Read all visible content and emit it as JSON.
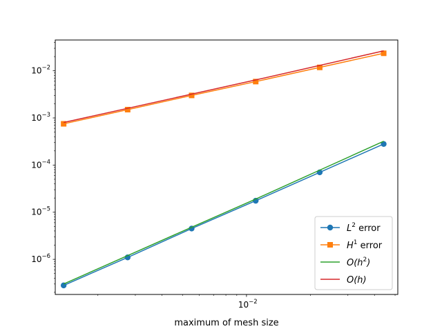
{
  "chart_data": {
    "type": "line",
    "title": "",
    "xlabel": "maximum of mesh size",
    "ylabel": "",
    "xscale": "log",
    "yscale": "log",
    "xlim": [
      0.00126,
      0.0515
    ],
    "ylim": [
      1.8e-07,
      0.045
    ],
    "grid": false,
    "legend_position": "lower-right",
    "x_ticks": [
      {
        "value": 0.01,
        "base": "10",
        "exp": "−2"
      }
    ],
    "y_ticks": [
      {
        "value": 1e-06,
        "base": "10",
        "exp": "−6"
      },
      {
        "value": 1e-05,
        "base": "10",
        "exp": "−5"
      },
      {
        "value": 0.0001,
        "base": "10",
        "exp": "−4"
      },
      {
        "value": 0.001,
        "base": "10",
        "exp": "−3"
      },
      {
        "value": 0.01,
        "base": "10",
        "exp": "−2"
      }
    ],
    "x": [
      0.00138,
      0.00276,
      0.00552,
      0.01105,
      0.0221,
      0.0442
    ],
    "series": [
      {
        "name": "L² error",
        "name_parts": {
          "base": "L",
          "sup": "2",
          "rest": " error"
        },
        "color": "#1f77b4",
        "marker": "circle",
        "values": [
          2.8e-07,
          1.1e-06,
          4.5e-06,
          1.75e-05,
          7e-05,
          0.00028
        ]
      },
      {
        "name": "H¹ error",
        "name_parts": {
          "base": "H",
          "sup": "1",
          "rest": " error"
        },
        "color": "#ff7f0e",
        "marker": "square",
        "values": [
          0.00075,
          0.0015,
          0.003,
          0.0059,
          0.0118,
          0.0235
        ]
      },
      {
        "name": "O(h²)",
        "name_parts": {
          "pre": "O(h",
          "sup": "2",
          "post": ")"
        },
        "color": "#2ca02c",
        "marker": "none",
        "values": [
          3e-07,
          1.2e-06,
          4.8e-06,
          1.9e-05,
          7.8e-05,
          0.00032
        ]
      },
      {
        "name": "O(h)",
        "name_parts": {
          "pre": "O(h",
          "sup": "",
          "post": ")"
        },
        "color": "#d62728",
        "marker": "none",
        "values": [
          0.0008,
          0.0016,
          0.0032,
          0.0064,
          0.013,
          0.0265
        ]
      }
    ]
  }
}
